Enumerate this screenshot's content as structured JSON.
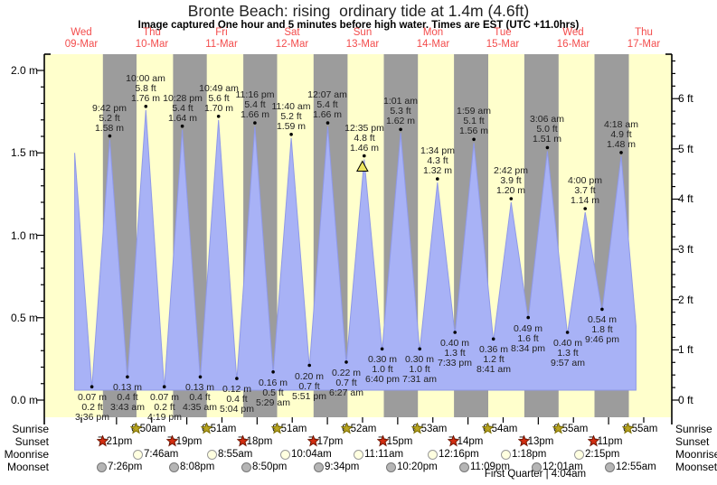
{
  "title": "Bronte Beach: rising  ordinary tide at 1.4m (4.6ft)",
  "subtitle": "Image captured One hour and 5 minutes before high water. Times are EST (UTC +11.0hrs)",
  "chart_data": {
    "type": "area",
    "title": "Bronte Beach: rising ordinary tide at 1.4m (4.6ft)",
    "subtitle": "Image captured One hour and 5 minutes before high water. Times are EST (UTC +11.0hrs)",
    "x_days": [
      {
        "name": "Wed",
        "date": "09-Mar"
      },
      {
        "name": "Thu",
        "date": "10-Mar"
      },
      {
        "name": "Fri",
        "date": "11-Mar"
      },
      {
        "name": "Sat",
        "date": "12-Mar"
      },
      {
        "name": "Sun",
        "date": "13-Mar"
      },
      {
        "name": "Mon",
        "date": "14-Mar"
      },
      {
        "name": "Tue",
        "date": "15-Mar"
      },
      {
        "name": "Wed",
        "date": "16-Mar"
      },
      {
        "name": "Thu",
        "date": "17-Mar"
      }
    ],
    "y_left_ticks": [
      "0.0 m",
      "0.5 m",
      "1.0 m",
      "1.5 m",
      "2.0 m"
    ],
    "y_right_ticks": [
      "0 ft",
      "1 ft",
      "2 ft",
      "3 ft",
      "4 ft",
      "5 ft",
      "6 ft"
    ],
    "ylim_m": [
      0.0,
      2.1
    ],
    "series_start": {
      "day": 0.405,
      "height_m": 1.5
    },
    "series_end": {
      "day": 8.39,
      "height_m": 0.45
    },
    "tide_extremes": [
      {
        "type": "low",
        "day": 0.65,
        "height_m": 0.07,
        "m": "0.07 m",
        "ft": "0.2 ft",
        "time": "3:36 pm"
      },
      {
        "type": "high",
        "day": 0.904,
        "height_m": 1.58,
        "m": "1.58 m",
        "ft": "5.2 ft",
        "time": "9:42 pm"
      },
      {
        "type": "low",
        "day": 1.155,
        "height_m": 0.13,
        "m": "0.13 m",
        "ft": "0.4 ft",
        "time": "3:43 am"
      },
      {
        "type": "high",
        "day": 1.417,
        "height_m": 1.76,
        "m": "1.76 m",
        "ft": "5.8 ft",
        "time": "10:00 am"
      },
      {
        "type": "low",
        "day": 1.68,
        "height_m": 0.07,
        "m": "0.07 m",
        "ft": "0.2 ft",
        "time": "4:19 pm"
      },
      {
        "type": "high",
        "day": 1.936,
        "height_m": 1.64,
        "m": "1.64 m",
        "ft": "5.4 ft",
        "time": "10:28 pm"
      },
      {
        "type": "low",
        "day": 2.191,
        "height_m": 0.13,
        "m": "0.13 m",
        "ft": "0.4 ft",
        "time": "4:35 am"
      },
      {
        "type": "high",
        "day": 2.451,
        "height_m": 1.7,
        "m": "1.70 m",
        "ft": "5.6 ft",
        "time": "10:49 am"
      },
      {
        "type": "low",
        "day": 2.711,
        "height_m": 0.12,
        "m": "0.12 m",
        "ft": "0.4 ft",
        "time": "5:04 pm"
      },
      {
        "type": "high",
        "day": 2.969,
        "height_m": 1.66,
        "m": "1.66 m",
        "ft": "5.4 ft",
        "time": "11:16 pm"
      },
      {
        "type": "low",
        "day": 3.228,
        "height_m": 0.16,
        "m": "0.16 m",
        "ft": "0.5 ft",
        "time": "5:29 am"
      },
      {
        "type": "high",
        "day": 3.486,
        "height_m": 1.59,
        "m": "1.59 m",
        "ft": "5.2 ft",
        "time": "11:40 am"
      },
      {
        "type": "low",
        "day": 3.744,
        "height_m": 0.2,
        "m": "0.20 m",
        "ft": "0.7 ft",
        "time": "5:51 pm"
      },
      {
        "type": "high",
        "day": 4.005,
        "height_m": 1.66,
        "m": "1.66 m",
        "ft": "5.4 ft",
        "time": "12:07 am"
      },
      {
        "type": "low",
        "day": 4.269,
        "height_m": 0.22,
        "m": "0.22 m",
        "ft": "0.7 ft",
        "time": "6:27 am"
      },
      {
        "type": "high",
        "day": 4.524,
        "height_m": 1.46,
        "m": "1.46 m",
        "ft": "4.8 ft",
        "time": "12:35 pm",
        "current": true
      },
      {
        "type": "low",
        "day": 4.778,
        "height_m": 0.3,
        "m": "0.30 m",
        "ft": "1.0 ft",
        "time": "6:40 pm"
      },
      {
        "type": "high",
        "day": 5.042,
        "height_m": 1.62,
        "m": "1.62 m",
        "ft": "5.3 ft",
        "time": "1:01 am"
      },
      {
        "type": "low",
        "day": 5.313,
        "height_m": 0.3,
        "m": "0.30 m",
        "ft": "1.0 ft",
        "time": "7:31 am"
      },
      {
        "type": "high",
        "day": 5.565,
        "height_m": 1.32,
        "m": "1.32 m",
        "ft": "4.3 ft",
        "time": "1:34 pm"
      },
      {
        "type": "low",
        "day": 5.815,
        "height_m": 0.4,
        "m": "0.40 m",
        "ft": "1.3 ft",
        "time": "7:33 pm"
      },
      {
        "type": "high",
        "day": 6.083,
        "height_m": 1.56,
        "m": "1.56 m",
        "ft": "5.1 ft",
        "time": "1:59 am"
      },
      {
        "type": "low",
        "day": 6.362,
        "height_m": 0.36,
        "m": "0.36 m",
        "ft": "1.2 ft",
        "time": "8:41 am"
      },
      {
        "type": "high",
        "day": 6.613,
        "height_m": 1.2,
        "m": "1.20 m",
        "ft": "3.9 ft",
        "time": "2:42 pm"
      },
      {
        "type": "low",
        "day": 6.857,
        "height_m": 0.49,
        "m": "0.49 m",
        "ft": "1.6 ft",
        "time": "8:34 pm"
      },
      {
        "type": "high",
        "day": 7.129,
        "height_m": 1.51,
        "m": "1.51 m",
        "ft": "5.0 ft",
        "time": "3:06 am"
      },
      {
        "type": "low",
        "day": 7.415,
        "height_m": 0.4,
        "m": "0.40 m",
        "ft": "1.3 ft",
        "time": "9:57 am"
      },
      {
        "type": "high",
        "day": 7.667,
        "height_m": 1.14,
        "m": "1.14 m",
        "ft": "3.7 ft",
        "time": "4:00 pm"
      },
      {
        "type": "low",
        "day": 7.907,
        "height_m": 0.54,
        "m": "0.54 m",
        "ft": "1.8 ft",
        "time": "9:46 pm"
      },
      {
        "type": "high",
        "day": 8.179,
        "height_m": 1.48,
        "m": "1.48 m",
        "ft": "4.9 ft",
        "time": "4:18 am"
      }
    ],
    "colors": {
      "day_background": "#ffffcc",
      "night_background": "#9c9c9c",
      "tide_fill": "#a8b2f6",
      "tide_edge": "#8f99e8",
      "day_label_red": "#f34c4c",
      "marker_dot": "#000000",
      "current_marker_fill": "#ece45f",
      "sunrise_star": "#b8a420",
      "sunset_star": "#d42d10",
      "moonrise_circle": "#ffffe0",
      "moonset_circle": "#b5b5b5"
    }
  },
  "astro": {
    "rows": [
      {
        "key": "sunrise",
        "label": "Sunrise",
        "entries": [
          {
            "time": "6:50am",
            "day": 1.285
          },
          {
            "time": "6:51am",
            "day": 2.285
          },
          {
            "time": "6:51am",
            "day": 3.285
          },
          {
            "time": "6:52am",
            "day": 4.286
          },
          {
            "time": "6:53am",
            "day": 5.287
          },
          {
            "time": "6:54am",
            "day": 6.288
          },
          {
            "time": "6:55am",
            "day": 7.288
          },
          {
            "time": "6:55am",
            "day": 8.288
          }
        ]
      },
      {
        "key": "sunset",
        "label": "Sunset",
        "entries": [
          {
            "time": "7:21pm",
            "day": 0.806
          },
          {
            "time": "7:19pm",
            "day": 1.805
          },
          {
            "time": "7:18pm",
            "day": 2.804
          },
          {
            "time": "7:17pm",
            "day": 3.803
          },
          {
            "time": "7:15pm",
            "day": 4.802
          },
          {
            "time": "7:14pm",
            "day": 5.801
          },
          {
            "time": "7:13pm",
            "day": 6.801
          },
          {
            "time": "7:11pm",
            "day": 7.799
          }
        ]
      },
      {
        "key": "moonrise",
        "label": "Moonrise",
        "entries": [
          {
            "time": "7:46am",
            "day": 1.324
          },
          {
            "time": "8:55am",
            "day": 2.372
          },
          {
            "time": "10:04am",
            "day": 3.419
          },
          {
            "time": "11:11am",
            "day": 4.466
          },
          {
            "time": "12:16pm",
            "day": 5.511
          },
          {
            "time": "1:18pm",
            "day": 6.554
          },
          {
            "time": "2:15pm",
            "day": 7.594
          }
        ]
      },
      {
        "key": "moonset",
        "label": "Moonset",
        "entries": [
          {
            "time": "7:26pm",
            "day": 0.81
          },
          {
            "time": "8:08pm",
            "day": 1.839
          },
          {
            "time": "8:50pm",
            "day": 2.868
          },
          {
            "time": "9:34pm",
            "day": 3.899
          },
          {
            "time": "10:20pm",
            "day": 4.931
          },
          {
            "time": "11:09pm",
            "day": 5.965
          },
          {
            "time": "12:01am",
            "day": 7.001
          },
          {
            "time": "12:55am",
            "day": 8.038
          }
        ]
      }
    ],
    "footnote": "First Quarter | 4:04am"
  }
}
